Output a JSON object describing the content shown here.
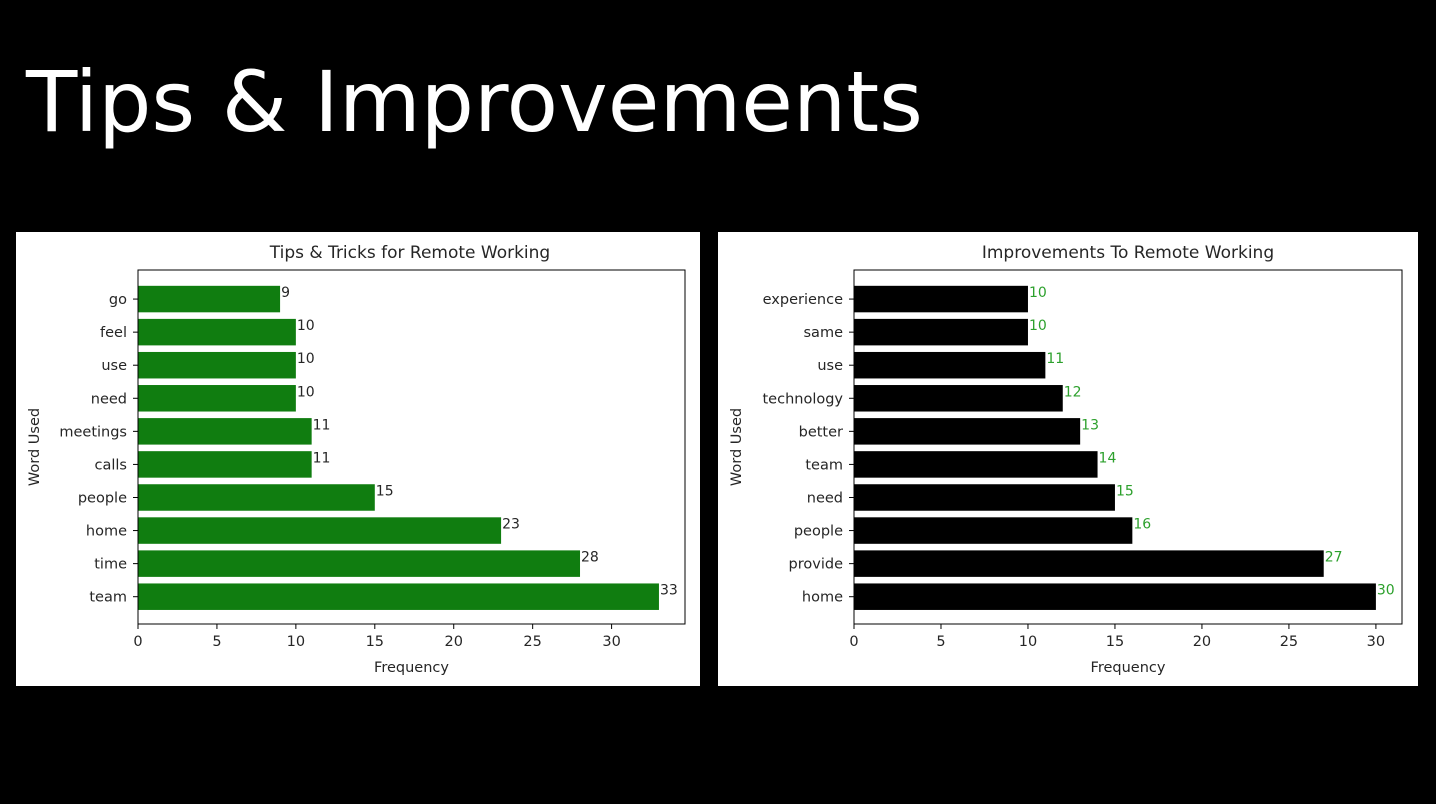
{
  "slide": {
    "title": "Tips & Improvements"
  },
  "chart_data": [
    {
      "type": "bar",
      "orientation": "horizontal",
      "title": "Tips & Tricks for Remote Working",
      "xlabel": "Frequency",
      "ylabel": "Word Used",
      "categories": [
        "team",
        "time",
        "home",
        "people",
        "calls",
        "meetings",
        "need",
        "use",
        "feel",
        "go"
      ],
      "values": [
        33,
        28,
        23,
        15,
        11,
        11,
        10,
        10,
        10,
        9
      ],
      "xlim": [
        0,
        34.65
      ],
      "xticks": [
        0,
        5,
        10,
        15,
        20,
        25,
        30
      ],
      "bar_color": "#107d10",
      "label_color": "#262626",
      "grid": false,
      "legend": "none"
    },
    {
      "type": "bar",
      "orientation": "horizontal",
      "title": "Improvements To Remote Working",
      "xlabel": "Frequency",
      "ylabel": "Word Used",
      "categories": [
        "home",
        "provide",
        "people",
        "need",
        "team",
        "better",
        "technology",
        "use",
        "same",
        "experience"
      ],
      "values": [
        30,
        27,
        16,
        15,
        14,
        13,
        12,
        11,
        10,
        10
      ],
      "xlim": [
        0,
        31.5
      ],
      "xticks": [
        0,
        5,
        10,
        15,
        20,
        25,
        30
      ],
      "bar_color": "#000000",
      "label_color": "#2ca02c",
      "grid": false,
      "legend": "none"
    }
  ]
}
